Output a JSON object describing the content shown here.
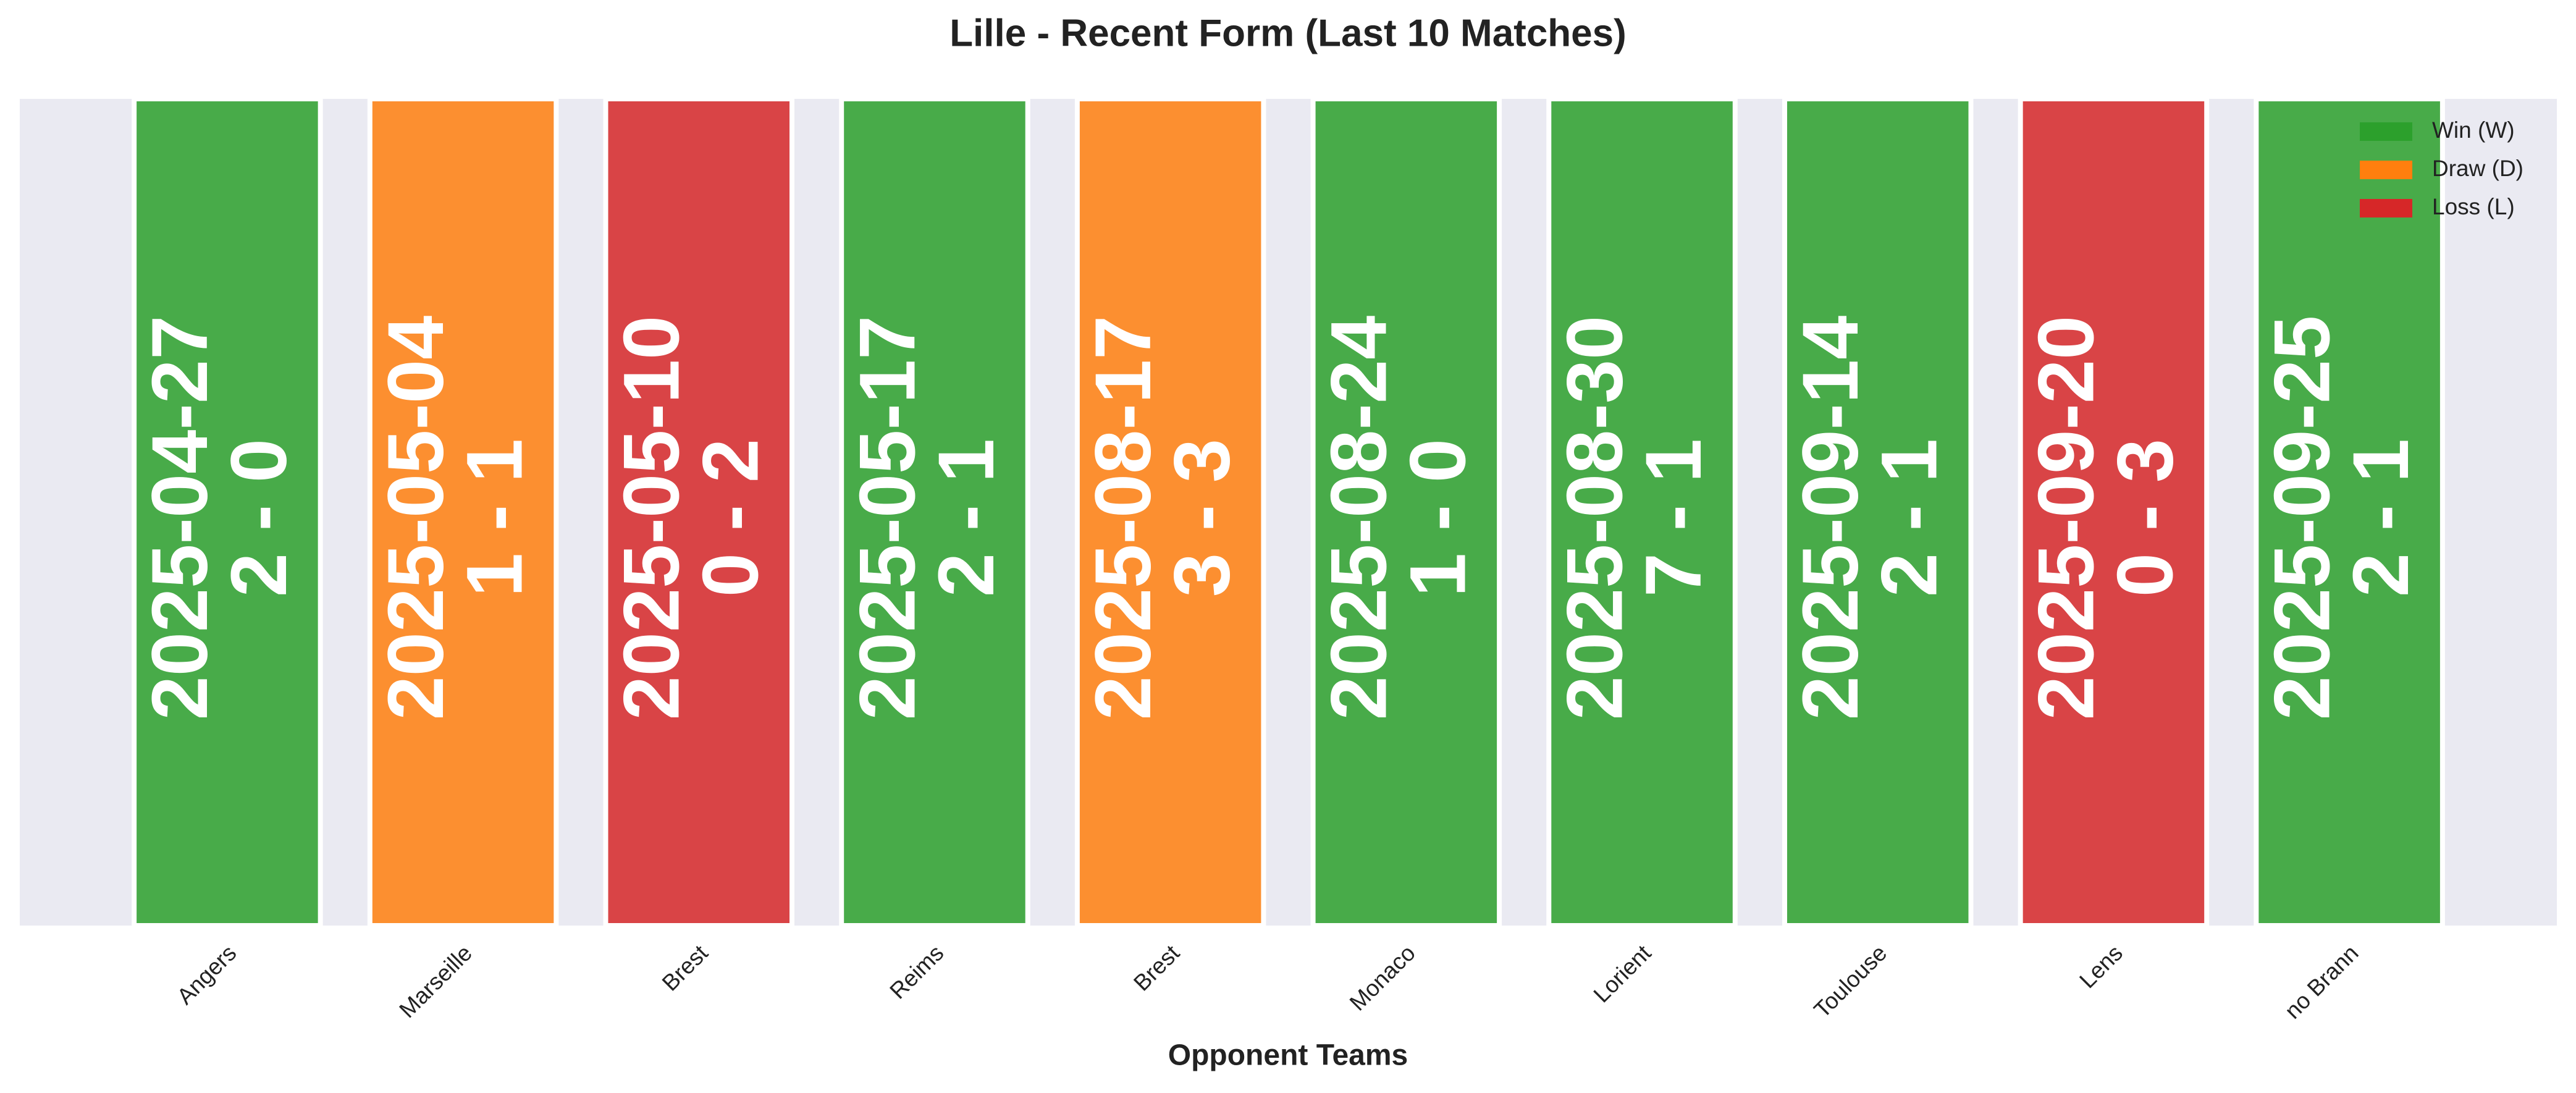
{
  "chart_data": {
    "type": "bar",
    "title": "Lille - Recent Form (Last 10 Matches)",
    "x_label": "Opponent Teams",
    "categories": [
      "Angers",
      "Marseille",
      "Brest",
      "Reims",
      "Brest",
      "Monaco",
      "Lorient",
      "Toulouse",
      "Lens",
      "no Brann"
    ],
    "series": [
      {
        "name": "Win (W)",
        "color": "#2ca02c",
        "dates": [
          "2025-04-27",
          null,
          null,
          "2025-05-17",
          null,
          "2025-08-24",
          "2025-08-30",
          "2025-09-14",
          null,
          "2025-09-25"
        ],
        "scores": [
          "2 - 0",
          null,
          null,
          "2 - 1",
          null,
          "1 - 0",
          "7 - 1",
          "2 - 1",
          null,
          "2 - 1"
        ]
      },
      {
        "name": "Draw (D)",
        "color": "#ff7f0e",
        "dates": [
          null,
          "2025-05-04",
          null,
          null,
          "2025-08-17",
          null,
          null,
          null,
          null,
          null
        ],
        "scores": [
          null,
          "1 - 1",
          null,
          null,
          "3 - 3",
          null,
          null,
          null,
          null,
          null
        ]
      },
      {
        "name": "Loss (L)",
        "color": "#d62728",
        "dates": [
          null,
          null,
          "2025-05-10",
          null,
          null,
          null,
          null,
          null,
          "2025-09-20",
          null
        ],
        "scores": [
          null,
          null,
          "0 - 2",
          null,
          null,
          null,
          null,
          null,
          "0 - 3",
          null
        ]
      }
    ],
    "legend": "upper right"
  }
}
